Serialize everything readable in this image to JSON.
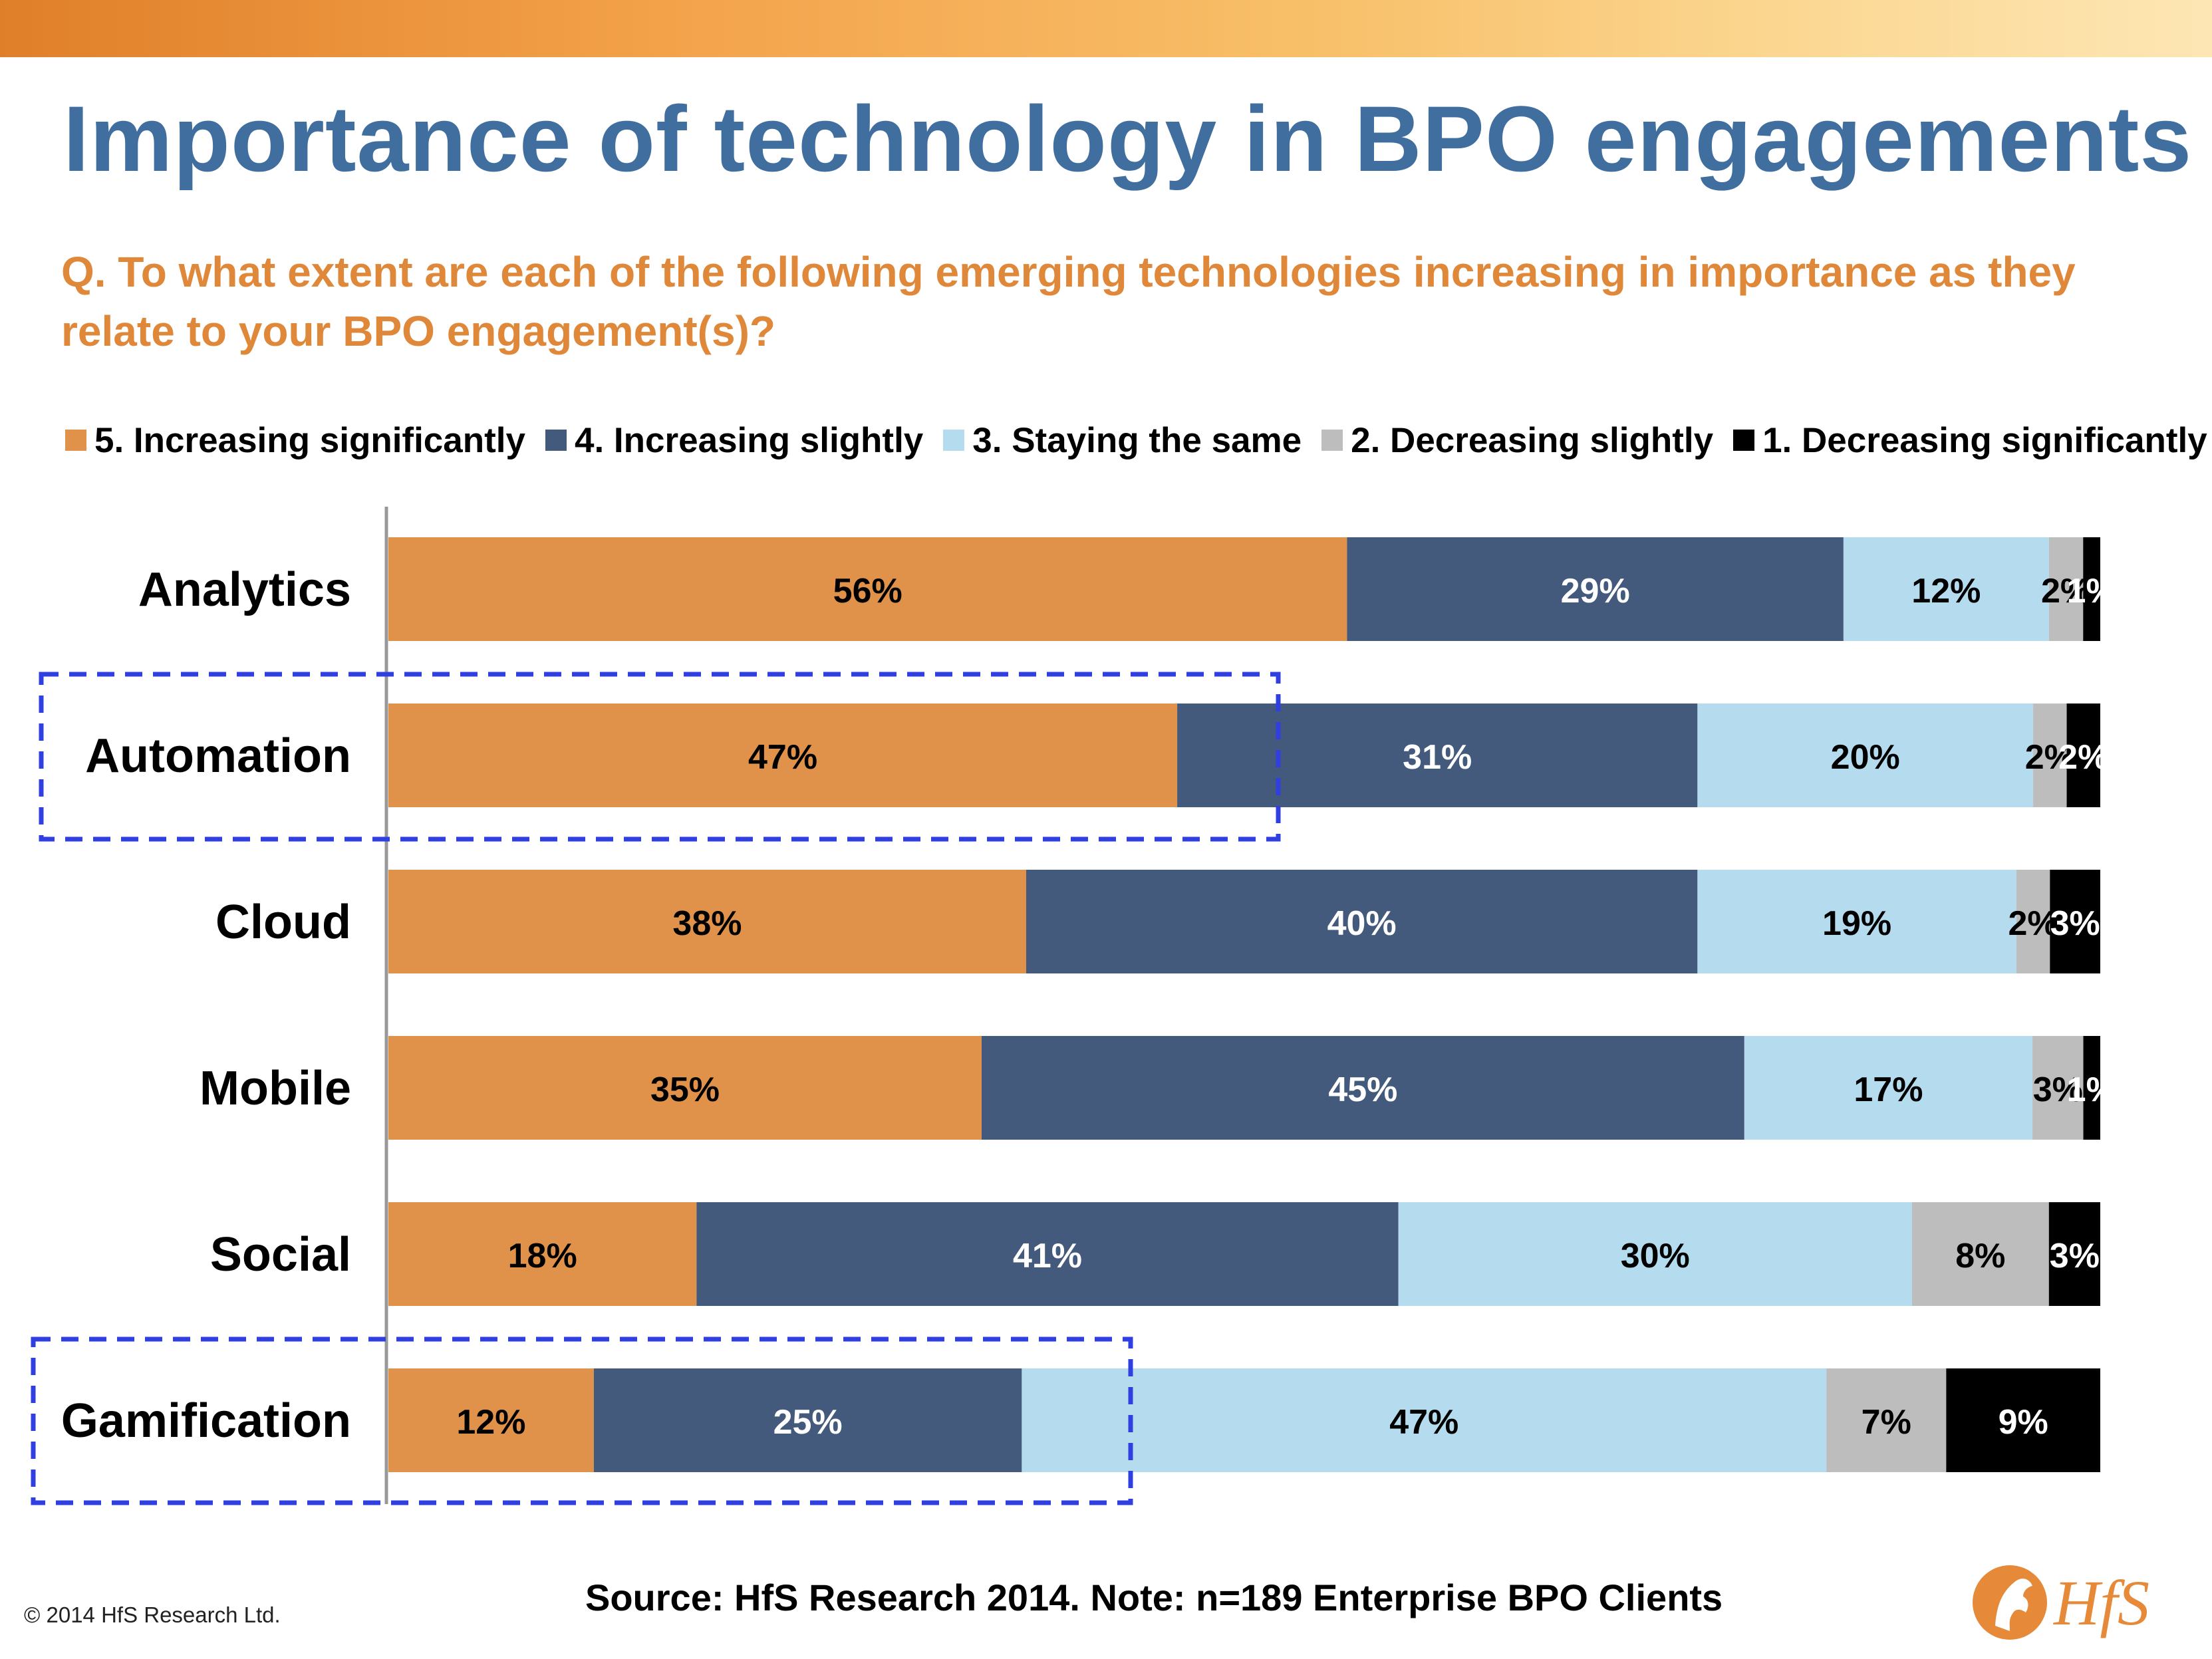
{
  "title": "Importance of technology in BPO engagements",
  "question": "Q. To what extent are each of the following emerging technologies increasing in importance as they relate to your BPO engagement(s)?",
  "footer": {
    "copyright": "© 2014 HfS Research Ltd.",
    "source": "Source: HfS Research 2014.  Note: n=189 Enterprise BPO Clients"
  },
  "logo": {
    "text": "HfS"
  },
  "chart_data": {
    "type": "bar",
    "orientation": "horizontal",
    "stacked": true,
    "legend_position": "top",
    "grid": false,
    "xlim": [
      0,
      100
    ],
    "categories": [
      "Analytics",
      "Automation",
      "Cloud",
      "Mobile",
      "Social",
      "Gamification"
    ],
    "series": [
      {
        "name": "5. Increasing significantly",
        "color": "#e0924a",
        "label_color": "#000000",
        "values": [
          56,
          47,
          38,
          35,
          18,
          12
        ]
      },
      {
        "name": "4. Increasing slightly",
        "color": "#435a7c",
        "label_color": "#ffffff",
        "values": [
          29,
          31,
          40,
          45,
          41,
          25
        ]
      },
      {
        "name": "3. Staying the same",
        "color": "#b4dcee",
        "label_color": "#000000",
        "values": [
          12,
          20,
          19,
          17,
          30,
          47
        ]
      },
      {
        "name": "2. Decreasing slightly",
        "color": "#bdbdbd",
        "label_color": "#000000",
        "values": [
          2,
          2,
          2,
          3,
          8,
          7
        ]
      },
      {
        "name": "1. Decreasing significantly",
        "color": "#000000",
        "label_color": "#ffffff",
        "values": [
          1,
          2,
          3,
          1,
          3,
          9
        ]
      }
    ],
    "data_labels": [
      [
        "56%",
        "29%",
        "12%",
        "2%",
        "1%"
      ],
      [
        "47%",
        "31%",
        "20%",
        "2%",
        "2%"
      ],
      [
        "38%",
        "40%",
        "19%",
        "2%",
        "3%"
      ],
      [
        "35%",
        "45%",
        "17%",
        "3%",
        "1%"
      ],
      [
        "18%",
        "41%",
        "30%",
        "8%",
        "3%"
      ],
      [
        "12%",
        "25%",
        "47%",
        "7%",
        "9%"
      ]
    ],
    "highlighted_categories": [
      "Automation",
      "Gamification"
    ],
    "highlight_color": "#2f3fe0"
  }
}
